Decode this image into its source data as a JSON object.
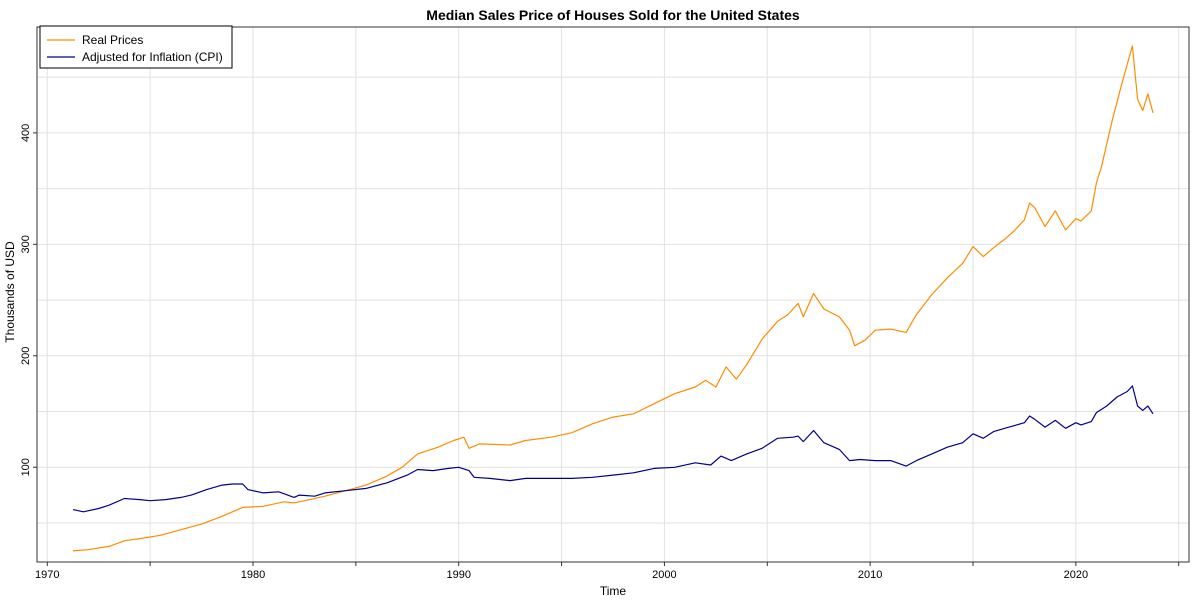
{
  "chart_data": {
    "type": "line",
    "title": "Median Sales Price of Houses Sold for the United States",
    "xlabel": "Time",
    "ylabel": "Thousands of USD",
    "xlim": [
      1969.5,
      2025.5
    ],
    "ylim": [
      15,
      495
    ],
    "x_ticks": [
      1970,
      1980,
      1990,
      2000,
      2010,
      2020
    ],
    "y_ticks": [
      100,
      200,
      300,
      400
    ],
    "grid": true,
    "legend_position": "top-left",
    "series": [
      {
        "name": "Real Prices",
        "color": "#ff8c00",
        "points": [
          [
            1971.25,
            25
          ],
          [
            1972,
            26
          ],
          [
            1973,
            29
          ],
          [
            1973.75,
            34
          ],
          [
            1974.5,
            36
          ],
          [
            1975.5,
            39
          ],
          [
            1976.5,
            44
          ],
          [
            1977.5,
            49
          ],
          [
            1978.5,
            56
          ],
          [
            1979.5,
            64
          ],
          [
            1980.5,
            65
          ],
          [
            1981.5,
            69
          ],
          [
            1982,
            68
          ],
          [
            1982.5,
            70
          ],
          [
            1983.5,
            74
          ],
          [
            1984.5,
            79
          ],
          [
            1985.5,
            84
          ],
          [
            1986.5,
            92
          ],
          [
            1987.25,
            100
          ],
          [
            1988,
            112
          ],
          [
            1989,
            118
          ],
          [
            1989.75,
            124
          ],
          [
            1990.25,
            127
          ],
          [
            1990.5,
            117
          ],
          [
            1991,
            121
          ],
          [
            1992.5,
            120
          ],
          [
            1993.25,
            124
          ],
          [
            1994.5,
            127
          ],
          [
            1995.5,
            131
          ],
          [
            1996.5,
            139
          ],
          [
            1997.5,
            145
          ],
          [
            1998.5,
            148
          ],
          [
            1999.5,
            157
          ],
          [
            2000.5,
            166
          ],
          [
            2001.5,
            172
          ],
          [
            2002,
            178
          ],
          [
            2002.5,
            172
          ],
          [
            2003,
            190
          ],
          [
            2003.5,
            179
          ],
          [
            2004,
            192
          ],
          [
            2004.75,
            215
          ],
          [
            2005.5,
            231
          ],
          [
            2006,
            237
          ],
          [
            2006.5,
            247
          ],
          [
            2006.75,
            235
          ],
          [
            2007.25,
            256
          ],
          [
            2007.75,
            242
          ],
          [
            2008.5,
            235
          ],
          [
            2009,
            223
          ],
          [
            2009.25,
            209
          ],
          [
            2009.75,
            214
          ],
          [
            2010.25,
            223
          ],
          [
            2011,
            224
          ],
          [
            2011.75,
            221
          ],
          [
            2012.25,
            237
          ],
          [
            2013,
            255
          ],
          [
            2013.75,
            270
          ],
          [
            2014.5,
            283
          ],
          [
            2015,
            298
          ],
          [
            2015.5,
            289
          ],
          [
            2016,
            297
          ],
          [
            2016.5,
            304
          ],
          [
            2017,
            312
          ],
          [
            2017.5,
            322
          ],
          [
            2017.75,
            337
          ],
          [
            2018,
            333
          ],
          [
            2018.5,
            316
          ],
          [
            2019,
            330
          ],
          [
            2019.5,
            313
          ],
          [
            2020,
            323
          ],
          [
            2020.25,
            321
          ],
          [
            2020.75,
            330
          ],
          [
            2021,
            355
          ],
          [
            2021.25,
            370
          ],
          [
            2021.75,
            410
          ],
          [
            2022.25,
            445
          ],
          [
            2022.75,
            478
          ],
          [
            2023,
            430
          ],
          [
            2023.25,
            420
          ],
          [
            2023.5,
            435
          ],
          [
            2023.75,
            418
          ]
        ]
      },
      {
        "name": "Adjusted for Inflation (CPI)",
        "color": "#00008b",
        "points": [
          [
            1971.25,
            62
          ],
          [
            1971.75,
            60
          ],
          [
            1972.5,
            63
          ],
          [
            1973,
            66
          ],
          [
            1973.75,
            72
          ],
          [
            1974.5,
            71
          ],
          [
            1975,
            70
          ],
          [
            1975.75,
            71
          ],
          [
            1976.5,
            73
          ],
          [
            1977,
            75
          ],
          [
            1977.75,
            80
          ],
          [
            1978.5,
            84
          ],
          [
            1979,
            85
          ],
          [
            1979.5,
            85
          ],
          [
            1979.75,
            80
          ],
          [
            1980.5,
            77
          ],
          [
            1981.25,
            78
          ],
          [
            1982,
            73
          ],
          [
            1982.25,
            75
          ],
          [
            1983,
            74
          ],
          [
            1983.5,
            77
          ],
          [
            1984.5,
            79
          ],
          [
            1985.5,
            81
          ],
          [
            1986.5,
            86
          ],
          [
            1987.5,
            93
          ],
          [
            1988,
            98
          ],
          [
            1988.75,
            97
          ],
          [
            1989.5,
            99
          ],
          [
            1990,
            100
          ],
          [
            1990.5,
            97
          ],
          [
            1990.75,
            91
          ],
          [
            1991.5,
            90
          ],
          [
            1992.5,
            88
          ],
          [
            1993.25,
            90
          ],
          [
            1994.5,
            90
          ],
          [
            1995.5,
            90
          ],
          [
            1996.5,
            91
          ],
          [
            1997.5,
            93
          ],
          [
            1998.5,
            95
          ],
          [
            1999.5,
            99
          ],
          [
            2000.5,
            100
          ],
          [
            2001.5,
            104
          ],
          [
            2002.25,
            102
          ],
          [
            2002.75,
            110
          ],
          [
            2003.25,
            106
          ],
          [
            2004,
            112
          ],
          [
            2004.75,
            117
          ],
          [
            2005.5,
            126
          ],
          [
            2006.25,
            127
          ],
          [
            2006.5,
            128
          ],
          [
            2006.75,
            123
          ],
          [
            2007.25,
            133
          ],
          [
            2007.75,
            122
          ],
          [
            2008.5,
            116
          ],
          [
            2009,
            106
          ],
          [
            2009.5,
            107
          ],
          [
            2010.25,
            106
          ],
          [
            2011,
            106
          ],
          [
            2011.75,
            101
          ],
          [
            2012.25,
            106
          ],
          [
            2013,
            112
          ],
          [
            2013.75,
            118
          ],
          [
            2014.5,
            122
          ],
          [
            2015,
            130
          ],
          [
            2015.5,
            126
          ],
          [
            2016,
            132
          ],
          [
            2016.75,
            136
          ],
          [
            2017.5,
            140
          ],
          [
            2017.75,
            146
          ],
          [
            2018,
            143
          ],
          [
            2018.5,
            136
          ],
          [
            2019,
            142
          ],
          [
            2019.5,
            135
          ],
          [
            2020,
            140
          ],
          [
            2020.25,
            138
          ],
          [
            2020.75,
            141
          ],
          [
            2021,
            149
          ],
          [
            2021.5,
            155
          ],
          [
            2022,
            163
          ],
          [
            2022.5,
            168
          ],
          [
            2022.75,
            173
          ],
          [
            2023,
            155
          ],
          [
            2023.25,
            151
          ],
          [
            2023.5,
            155
          ],
          [
            2023.75,
            148
          ]
        ]
      }
    ]
  }
}
